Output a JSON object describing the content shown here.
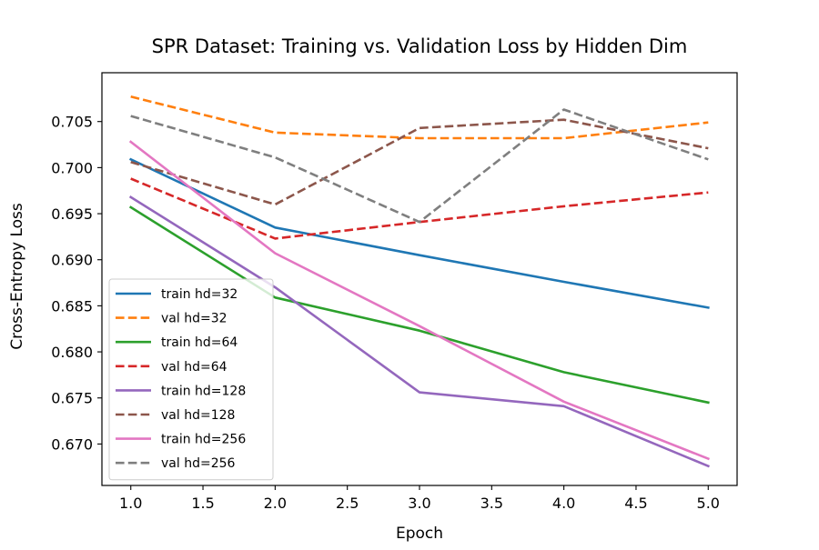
{
  "chart_data": {
    "type": "line",
    "title": "SPR Dataset: Training vs. Validation Loss by Hidden Dim",
    "xlabel": "Epoch",
    "ylabel": "Cross-Entropy Loss",
    "x": [
      1,
      2,
      3,
      4,
      5
    ],
    "xlim": [
      0.8,
      5.2
    ],
    "ylim": [
      0.6655,
      0.7103
    ],
    "xticks": [
      "1.0",
      "1.5",
      "2.0",
      "2.5",
      "3.0",
      "3.5",
      "4.0",
      "4.5",
      "5.0"
    ],
    "yticks": [
      "0.670",
      "0.675",
      "0.680",
      "0.685",
      "0.690",
      "0.695",
      "0.700",
      "0.705"
    ],
    "grid": false,
    "legend_position": "lower-left",
    "series": [
      {
        "name": "train hd=32",
        "color": "#1f77b4",
        "dash": "solid",
        "values": [
          0.7009,
          0.6935,
          0.6905,
          0.6876,
          0.6848
        ]
      },
      {
        "name": "val hd=32",
        "color": "#ff7f0e",
        "dash": "dashed",
        "values": [
          0.7077,
          0.7038,
          0.7032,
          0.7032,
          0.7049
        ]
      },
      {
        "name": "train hd=64",
        "color": "#2ca02c",
        "dash": "solid",
        "values": [
          0.6957,
          0.6859,
          0.6823,
          0.6778,
          0.6745
        ]
      },
      {
        "name": "val hd=64",
        "color": "#d62728",
        "dash": "dashed",
        "values": [
          0.6988,
          0.6923,
          0.6941,
          0.6958,
          0.6973
        ]
      },
      {
        "name": "train hd=128",
        "color": "#9467bd",
        "dash": "solid",
        "values": [
          0.6968,
          0.687,
          0.6756,
          0.6741,
          0.6676
        ]
      },
      {
        "name": "val hd=128",
        "color": "#8c564b",
        "dash": "dashed",
        "values": [
          0.7006,
          0.696,
          0.7043,
          0.7052,
          0.7021
        ]
      },
      {
        "name": "train hd=256",
        "color": "#e377c2",
        "dash": "solid",
        "values": [
          0.7028,
          0.6907,
          0.6828,
          0.6746,
          0.6684
        ]
      },
      {
        "name": "val hd=256",
        "color": "#7f7f7f",
        "dash": "dashed",
        "values": [
          0.7056,
          0.7011,
          0.6941,
          0.7063,
          0.7009
        ]
      }
    ]
  }
}
